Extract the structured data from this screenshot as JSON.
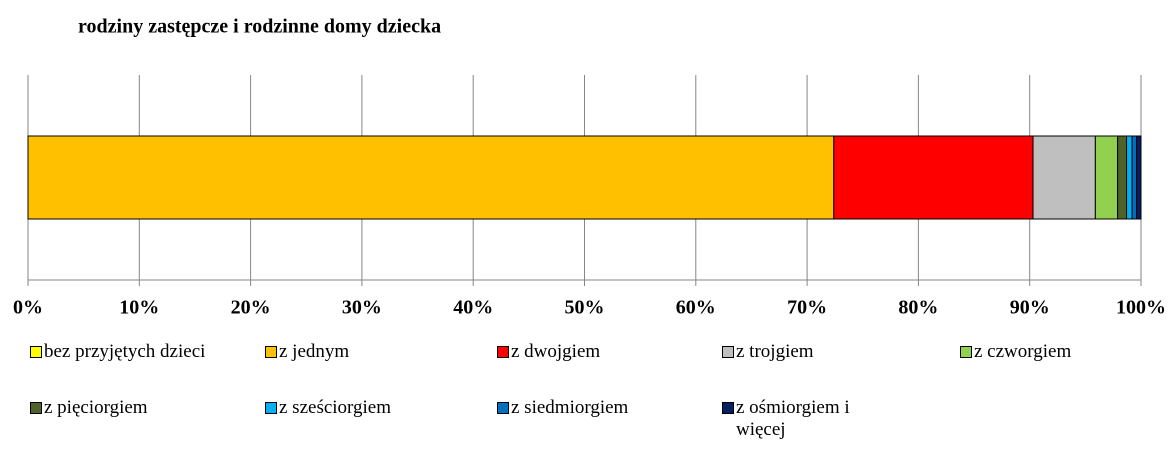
{
  "chart_data": {
    "type": "bar",
    "orientation": "horizontal",
    "stacked": true,
    "title": "rodziny zastępcze i rodzinne domy dziecka",
    "categories": [
      null
    ],
    "series": [
      {
        "name": "bez przyjętych dzieci",
        "color": "#ffff00",
        "values": [
          0
        ]
      },
      {
        "name": "z jednym",
        "color": "#ffc000",
        "values": [
          72.4
        ]
      },
      {
        "name": "z dwojgiem",
        "color": "#ff0000",
        "values": [
          17.9
        ]
      },
      {
        "name": "z trojgiem",
        "color": "#bfbfbf",
        "values": [
          5.6
        ]
      },
      {
        "name": "z czworgiem",
        "color": "#92d050",
        "values": [
          2.0
        ]
      },
      {
        "name": "z pięciorgiem",
        "color": "#4f6228",
        "values": [
          0.8
        ]
      },
      {
        "name": "z sześciorgiem",
        "color": "#00b0f0",
        "values": [
          0.5
        ]
      },
      {
        "name": "z siedmiorgiem",
        "color": "#0070c0",
        "values": [
          0.4
        ]
      },
      {
        "name": "z ośmiorgiem i więcej",
        "color": "#002060",
        "values": [
          0.4
        ]
      }
    ],
    "xlim": [
      0,
      100
    ],
    "xticks": [
      {
        "value": 0,
        "label": "0%"
      },
      {
        "value": 10,
        "label": "10%"
      },
      {
        "value": 20,
        "label": "20%"
      },
      {
        "value": 30,
        "label": "30%"
      },
      {
        "value": 40,
        "label": "40%"
      },
      {
        "value": 50,
        "label": "50%"
      },
      {
        "value": 60,
        "label": "60%"
      },
      {
        "value": 70,
        "label": "70%"
      },
      {
        "value": 80,
        "label": "80%"
      },
      {
        "value": 90,
        "label": "90%"
      },
      {
        "value": 100,
        "label": "100%"
      }
    ],
    "grid": true,
    "legend": "bottom"
  }
}
